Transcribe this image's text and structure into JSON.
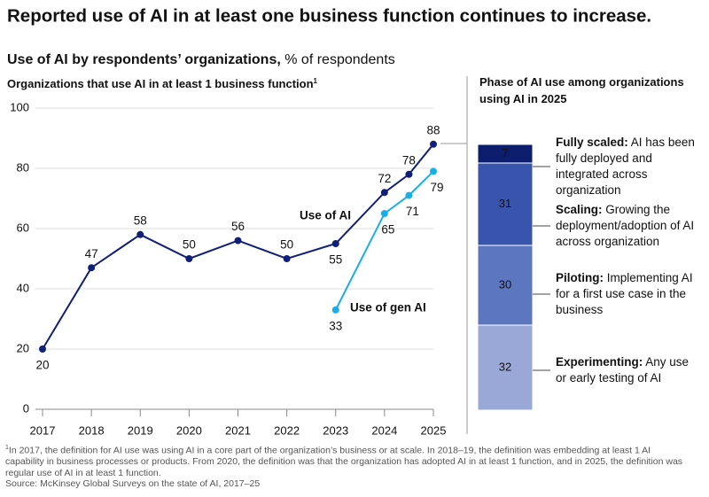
{
  "title": "Reported use of AI in at least one business function continues to increase.",
  "subtitle": "Use of AI by respondents’ organizations,",
  "subtitle_unit": "% of respondents",
  "chart_data": [
    {
      "type": "line",
      "title": "Organizations that use AI in at least 1 business function",
      "title_note": "1",
      "xlim": [
        2017,
        2025
      ],
      "xticks": [
        2017,
        2018,
        2019,
        2020,
        2021,
        2022,
        2023,
        2024,
        2025
      ],
      "ylim": [
        0,
        100
      ],
      "yticks": [
        0,
        20,
        40,
        60,
        80,
        100
      ],
      "grid": true,
      "series": [
        {
          "name": "Use of AI",
          "color": "#101f78",
          "x": [
            2017,
            2018,
            2019,
            2020,
            2021,
            2022,
            2023,
            2024,
            2024.5,
            2025
          ],
          "values": [
            20,
            47,
            58,
            50,
            56,
            50,
            55,
            72,
            78,
            88
          ]
        },
        {
          "name": "Use of gen AI",
          "color": "#1aaee8",
          "x": [
            2023,
            2024,
            2024.5,
            2025
          ],
          "values": [
            33,
            65,
            71,
            79
          ]
        }
      ]
    },
    {
      "type": "stacked-bar",
      "title": "Phase of AI use among organizations using AI in 2025",
      "ylim": [
        0,
        100
      ],
      "series": [
        {
          "name": "Experimenting:",
          "description": "Any use or early testing of AI",
          "color": "#9aa8d8",
          "values": [
            32
          ]
        },
        {
          "name": "Piloting:",
          "description": "Implementing AI for a first use case in the business",
          "color": "#5d76c0",
          "values": [
            30
          ]
        },
        {
          "name": "Scaling:",
          "description": "Growing the deployment/adoption of AI across organization",
          "color": "#3954ac",
          "values": [
            31
          ]
        },
        {
          "name": "Fully scaled:",
          "description": "AI has been fully deployed and integrated across organization",
          "color": "#0b1d6c",
          "values": [
            7
          ]
        }
      ]
    }
  ],
  "footnote_marker": "1",
  "footnote": "In 2017, the definition for AI use was using AI in a core part of the organization’s business or at scale. In 2018–19, the definition was embedding at least 1 AI capability in business processes or products. From 2020, the definition was that the organization has adopted AI in at least 1 function, and in 2025, the definition was regular use of AI in at least 1 function.",
  "source": "Source: McKinsey Global Surveys on the state of AI, 2017–25"
}
